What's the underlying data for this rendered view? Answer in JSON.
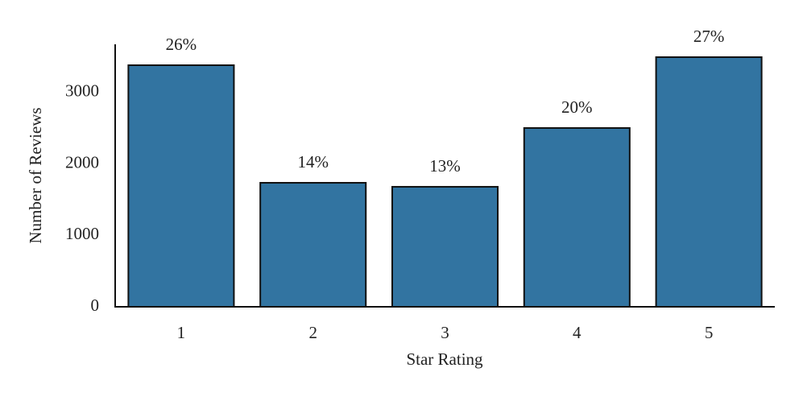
{
  "chart_data": {
    "type": "bar",
    "x_label": "Star Rating",
    "y_label": "Number of Reviews",
    "categories": [
      "1",
      "2",
      "3",
      "4",
      "5"
    ],
    "values": [
      3382,
      1736,
      1680,
      2503,
      3495
    ],
    "percent_labels": [
      "26%",
      "14%",
      "13%",
      "20%",
      "27%"
    ],
    "color": "#3274a1",
    "ylim": [
      0,
      3675
    ],
    "yticks": [
      0,
      1000,
      2000,
      3000
    ],
    "grid": false
  }
}
